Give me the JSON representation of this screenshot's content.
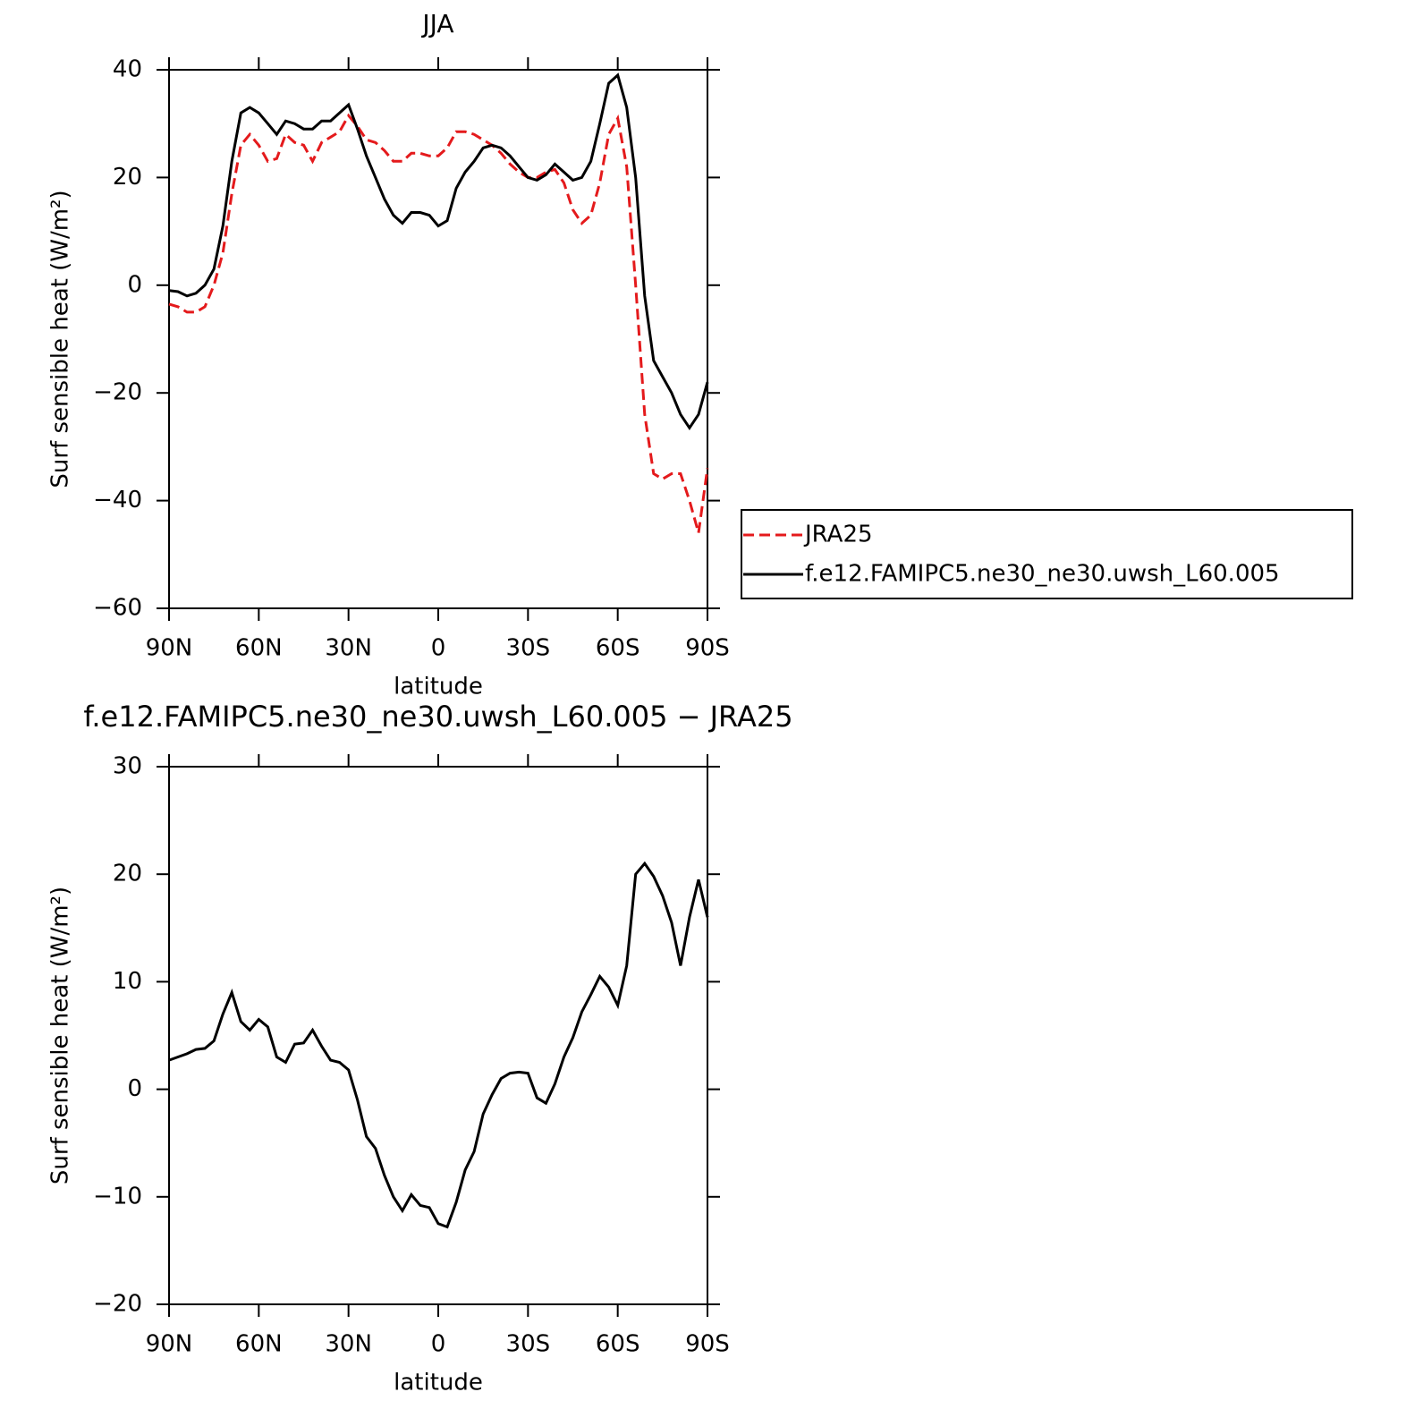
{
  "chart_data": [
    {
      "type": "line",
      "title": "JJA",
      "xlabel": "latitude",
      "ylabel": "Surf sensible heat (W/m²)",
      "x": [
        90,
        87,
        84,
        81,
        78,
        75,
        72,
        69,
        66,
        63,
        60,
        57,
        54,
        51,
        48,
        45,
        42,
        39,
        36,
        33,
        30,
        27,
        24,
        21,
        18,
        15,
        12,
        9,
        6,
        3,
        0,
        -3,
        -6,
        -9,
        -12,
        -15,
        -18,
        -21,
        -24,
        -27,
        -30,
        -33,
        -36,
        -39,
        -42,
        -45,
        -48,
        -51,
        -54,
        -57,
        -60,
        -63,
        -66,
        -69,
        -72,
        -75,
        -78,
        -81,
        -84,
        -87,
        -90
      ],
      "series": [
        {
          "name": "JRA25",
          "color": "#e41a1c",
          "dash": true,
          "values": [
            -3.5,
            -4,
            -5,
            -5,
            -4,
            0,
            6,
            17,
            26,
            28,
            26,
            23,
            23.5,
            28,
            26.5,
            26,
            23,
            26.5,
            27.5,
            28.5,
            31.5,
            29.5,
            27,
            26.5,
            25,
            23,
            23,
            24.5,
            24.5,
            24,
            24,
            25.5,
            28.5,
            28.5,
            28,
            27,
            26,
            24.5,
            22.5,
            21,
            20,
            20,
            21,
            21.5,
            19,
            14,
            11.5,
            13,
            19,
            28,
            31,
            22,
            0,
            -24,
            -35,
            -36,
            -35,
            -35,
            -40,
            -46,
            -34
          ]
        },
        {
          "name": "f.e12.FAMIPC5.ne30_ne30.uwsh_L60.005",
          "color": "#000000",
          "dash": false,
          "values": [
            -1,
            -1.2,
            -2,
            -1.5,
            0,
            3,
            11,
            23,
            32,
            33,
            32,
            30,
            28,
            30.5,
            30,
            29,
            29,
            30.5,
            30.5,
            32,
            33.5,
            29,
            24,
            20,
            16,
            13,
            11.5,
            13.5,
            13.5,
            13,
            11,
            12,
            18,
            21,
            23,
            25.5,
            26,
            25.5,
            24,
            22,
            20,
            19.5,
            20.5,
            22.5,
            21,
            19.5,
            20,
            23,
            30,
            37.5,
            39,
            33,
            20,
            -2,
            -14,
            -17,
            -20,
            -24,
            -26.5,
            -24,
            -18
          ]
        }
      ],
      "xlim": [
        90,
        -90
      ],
      "xticks": [
        {
          "value": 90,
          "label": "90N"
        },
        {
          "value": 60,
          "label": "60N"
        },
        {
          "value": 30,
          "label": "30N"
        },
        0,
        {
          "value": -30,
          "label": "30S"
        },
        {
          "value": -60,
          "label": "60S"
        },
        {
          "value": -90,
          "label": "90S"
        }
      ],
      "ylim": [
        -60,
        40
      ],
      "yticks": [
        -60,
        -40,
        -20,
        0,
        20,
        40
      ],
      "legend": "right"
    },
    {
      "type": "line",
      "title": "f.e12.FAMIPC5.ne30_ne30.uwsh_L60.005 − JRA25",
      "xlabel": "latitude",
      "ylabel": "Surf sensible heat (W/m²)",
      "x": [
        90,
        87,
        84,
        81,
        78,
        75,
        72,
        69,
        66,
        63,
        60,
        57,
        54,
        51,
        48,
        45,
        42,
        39,
        36,
        33,
        30,
        27,
        24,
        21,
        18,
        15,
        12,
        9,
        6,
        3,
        0,
        -3,
        -6,
        -9,
        -12,
        -15,
        -18,
        -21,
        -24,
        -27,
        -30,
        -33,
        -36,
        -39,
        -42,
        -45,
        -48,
        -51,
        -54,
        -57,
        -60,
        -63,
        -66,
        -69,
        -72,
        -75,
        -78,
        -81,
        -84,
        -87,
        -90
      ],
      "color": "#000000",
      "values": [
        2.7,
        3,
        3.3,
        3.7,
        3.8,
        4.5,
        7,
        9,
        6.3,
        5.5,
        6.5,
        5.8,
        3,
        2.5,
        4.2,
        4.3,
        5.5,
        4,
        2.7,
        2.5,
        1.8,
        -1,
        -4.4,
        -5.5,
        -8,
        -10,
        -11.3,
        -9.8,
        -10.8,
        -11,
        -12.5,
        -12.8,
        -10.5,
        -7.5,
        -5.8,
        -2.3,
        -0.5,
        1,
        1.5,
        1.6,
        1.5,
        -0.8,
        -1.3,
        0.5,
        3,
        4.8,
        7.2,
        8.8,
        10.5,
        9.5,
        7.8,
        11.5,
        20,
        21,
        19.8,
        18,
        15.5,
        11.5,
        16,
        19.5,
        16
      ],
      "xlim": [
        90,
        -90
      ],
      "xticks": [
        {
          "value": 90,
          "label": "90N"
        },
        {
          "value": 60,
          "label": "60N"
        },
        {
          "value": 30,
          "label": "30N"
        },
        0,
        {
          "value": -30,
          "label": "30S"
        },
        {
          "value": -60,
          "label": "60S"
        },
        {
          "value": -90,
          "label": "90S"
        }
      ],
      "ylim": [
        -20,
        30
      ],
      "yticks": [
        -20,
        -10,
        0,
        10,
        20,
        30
      ]
    }
  ]
}
